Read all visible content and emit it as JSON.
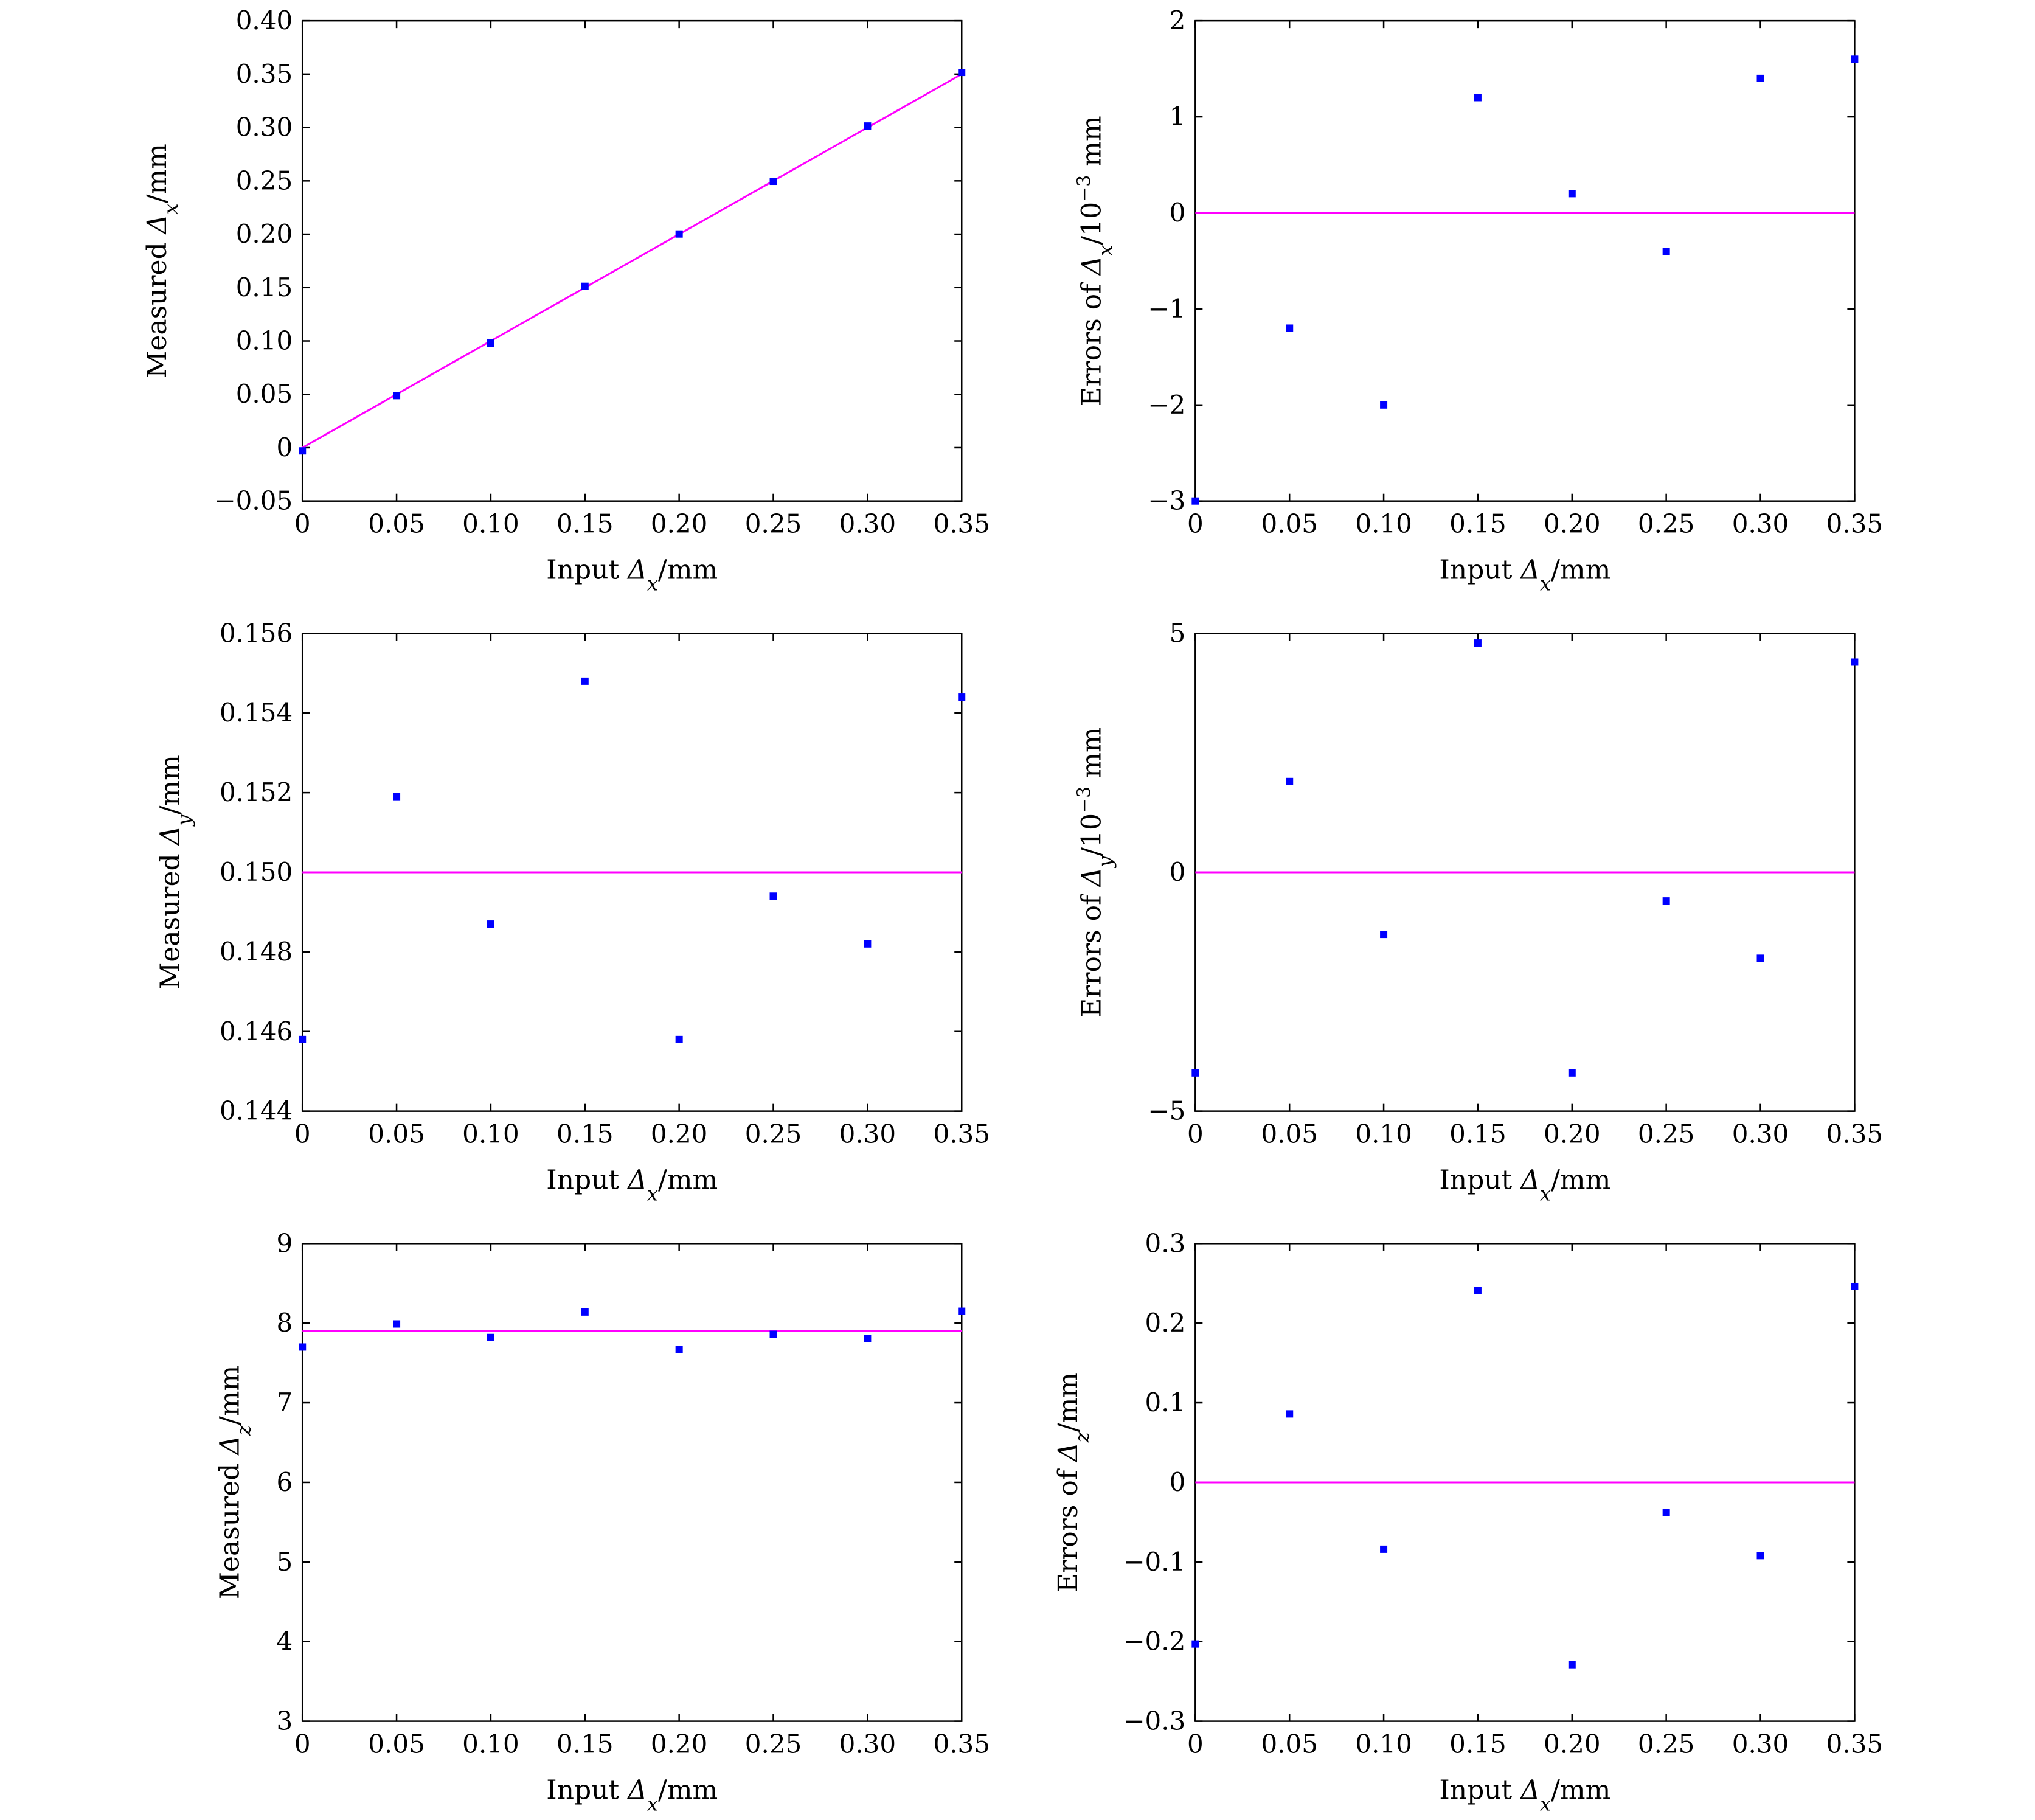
{
  "chart_data": [
    {
      "type": "scatter",
      "xlabel": "Input Δx/mm",
      "ylabel": "Measured Δx/mm",
      "xlabel_parts": {
        "pre": "Input ",
        "sym": "Δ",
        "sub": "x",
        "post": "/mm"
      },
      "ylabel_parts": {
        "pre": "Measured ",
        "sym": "Δ",
        "sub": "x",
        "post": "/mm"
      },
      "xlim": [
        0,
        0.35
      ],
      "ylim": [
        -0.05,
        0.4
      ],
      "xticks": [
        0,
        0.05,
        0.1,
        0.15,
        0.2,
        0.25,
        0.3,
        0.35
      ],
      "xtick_labels": [
        "0",
        "0.05",
        "0.10",
        "0.15",
        "0.20",
        "0.25",
        "0.30",
        "0.35"
      ],
      "yticks": [
        -0.05,
        0,
        0.05,
        0.1,
        0.15,
        0.2,
        0.25,
        0.3,
        0.35,
        0.4
      ],
      "ytick_labels": [
        "−0.05",
        "0",
        "0.05",
        "0.10",
        "0.15",
        "0.20",
        "0.25",
        "0.30",
        "0.35",
        "0.40"
      ],
      "series": [
        {
          "name": "measured",
          "color": "#0000ff",
          "x": [
            0,
            0.05,
            0.1,
            0.15,
            0.2,
            0.25,
            0.3,
            0.35
          ],
          "y": [
            -0.003,
            0.0488,
            0.098,
            0.1512,
            0.2002,
            0.2496,
            0.3014,
            0.3516
          ]
        }
      ],
      "reference_line": {
        "color": "#ff00ff",
        "x": [
          0,
          0.35
        ],
        "y": [
          0,
          0.35
        ]
      }
    },
    {
      "type": "scatter",
      "xlabel": "Input Δx/mm",
      "ylabel": "Errors of Δx/10−3 mm",
      "xlabel_parts": {
        "pre": "Input ",
        "sym": "Δ",
        "sub": "x",
        "post": "/mm"
      },
      "ylabel_parts": {
        "pre": "Errors of ",
        "sym": "Δ",
        "sub": "x",
        "post": "/10",
        "sup": "−3",
        "post2": " mm"
      },
      "xlim": [
        0,
        0.35
      ],
      "ylim": [
        -3,
        2
      ],
      "xticks": [
        0,
        0.05,
        0.1,
        0.15,
        0.2,
        0.25,
        0.3,
        0.35
      ],
      "xtick_labels": [
        "0",
        "0.05",
        "0.10",
        "0.15",
        "0.20",
        "0.25",
        "0.30",
        "0.35"
      ],
      "yticks": [
        -3,
        -2,
        -1,
        0,
        1,
        2
      ],
      "ytick_labels": [
        "−3",
        "−2",
        "−1",
        "0",
        "1",
        "2"
      ],
      "series": [
        {
          "name": "errors",
          "color": "#0000ff",
          "x": [
            0,
            0.05,
            0.1,
            0.15,
            0.2,
            0.25,
            0.3,
            0.35
          ],
          "y": [
            -3,
            -1.2,
            -2,
            1.2,
            0.2,
            -0.4,
            1.4,
            1.6
          ]
        }
      ],
      "reference_line": {
        "color": "#ff00ff",
        "x": [
          0,
          0.35
        ],
        "y": [
          0,
          0
        ]
      }
    },
    {
      "type": "scatter",
      "xlabel": "Input Δx/mm",
      "ylabel": "Measured Δy/mm",
      "xlabel_parts": {
        "pre": "Input ",
        "sym": "Δ",
        "sub": "x",
        "post": "/mm"
      },
      "ylabel_parts": {
        "pre": "Measured ",
        "sym": "Δ",
        "sub": "y",
        "post": "/mm"
      },
      "xlim": [
        0,
        0.35
      ],
      "ylim": [
        0.144,
        0.156
      ],
      "xticks": [
        0,
        0.05,
        0.1,
        0.15,
        0.2,
        0.25,
        0.3,
        0.35
      ],
      "xtick_labels": [
        "0",
        "0.05",
        "0.10",
        "0.15",
        "0.20",
        "0.25",
        "0.30",
        "0.35"
      ],
      "yticks": [
        0.144,
        0.146,
        0.148,
        0.15,
        0.152,
        0.154,
        0.156
      ],
      "ytick_labels": [
        "0.144",
        "0.146",
        "0.148",
        "0.150",
        "0.152",
        "0.154",
        "0.156"
      ],
      "series": [
        {
          "name": "measured",
          "color": "#0000ff",
          "x": [
            0,
            0.05,
            0.1,
            0.15,
            0.2,
            0.25,
            0.3,
            0.35
          ],
          "y": [
            0.1458,
            0.1519,
            0.1487,
            0.1548,
            0.1458,
            0.1494,
            0.1482,
            0.1544
          ]
        }
      ],
      "reference_line": {
        "color": "#ff00ff",
        "x": [
          0,
          0.35
        ],
        "y": [
          0.15,
          0.15
        ]
      }
    },
    {
      "type": "scatter",
      "xlabel": "Input Δx/mm",
      "ylabel": "Errors of Δy/10−3 mm",
      "xlabel_parts": {
        "pre": "Input ",
        "sym": "Δ",
        "sub": "x",
        "post": "/mm"
      },
      "ylabel_parts": {
        "pre": "Errors of ",
        "sym": "Δ",
        "sub": "y",
        "post": "/10",
        "sup": "−3",
        "post2": " mm"
      },
      "xlim": [
        0,
        0.35
      ],
      "ylim": [
        -5,
        5
      ],
      "xticks": [
        0,
        0.05,
        0.1,
        0.15,
        0.2,
        0.25,
        0.3,
        0.35
      ],
      "xtick_labels": [
        "0",
        "0.05",
        "0.10",
        "0.15",
        "0.20",
        "0.25",
        "0.30",
        "0.35"
      ],
      "yticks": [
        -5,
        0,
        5
      ],
      "ytick_labels": [
        "−5",
        "0",
        "5"
      ],
      "series": [
        {
          "name": "errors",
          "color": "#0000ff",
          "x": [
            0,
            0.05,
            0.1,
            0.15,
            0.2,
            0.25,
            0.3,
            0.35
          ],
          "y": [
            -4.2,
            1.9,
            -1.3,
            4.8,
            -4.2,
            -0.6,
            -1.8,
            4.4
          ]
        }
      ],
      "reference_line": {
        "color": "#ff00ff",
        "x": [
          0,
          0.35
        ],
        "y": [
          0,
          0
        ]
      }
    },
    {
      "type": "scatter",
      "xlabel": "Input Δx/mm",
      "ylabel": "Measured Δz/mm",
      "xlabel_parts": {
        "pre": "Input ",
        "sym": "Δ",
        "sub": "x",
        "post": "/mm"
      },
      "ylabel_parts": {
        "pre": "Measured ",
        "sym": "Δ",
        "sub": "z",
        "post": "/mm"
      },
      "xlim": [
        0,
        0.35
      ],
      "ylim": [
        3,
        9
      ],
      "xticks": [
        0,
        0.05,
        0.1,
        0.15,
        0.2,
        0.25,
        0.3,
        0.35
      ],
      "xtick_labels": [
        "0",
        "0.05",
        "0.10",
        "0.15",
        "0.20",
        "0.25",
        "0.30",
        "0.35"
      ],
      "yticks": [
        3,
        4,
        5,
        6,
        7,
        8,
        9
      ],
      "ytick_labels": [
        "3",
        "4",
        "5",
        "6",
        "7",
        "8",
        "9"
      ],
      "series": [
        {
          "name": "measured",
          "color": "#0000ff",
          "x": [
            0,
            0.05,
            0.1,
            0.15,
            0.2,
            0.25,
            0.3,
            0.35
          ],
          "y": [
            7.7,
            7.99,
            7.82,
            8.14,
            7.67,
            7.86,
            7.81,
            8.15
          ]
        }
      ],
      "reference_line": {
        "color": "#ff00ff",
        "x": [
          0,
          0.35
        ],
        "y": [
          7.9,
          7.9
        ]
      }
    },
    {
      "type": "scatter",
      "xlabel": "Input Δx/mm",
      "ylabel": "Errors of Δz/mm",
      "xlabel_parts": {
        "pre": "Input ",
        "sym": "Δ",
        "sub": "x",
        "post": "/mm"
      },
      "ylabel_parts": {
        "pre": "Errors of ",
        "sym": "Δ",
        "sub": "z",
        "post": "/mm"
      },
      "xlim": [
        0,
        0.35
      ],
      "ylim": [
        -0.3,
        0.3
      ],
      "xticks": [
        0,
        0.05,
        0.1,
        0.15,
        0.2,
        0.25,
        0.3,
        0.35
      ],
      "xtick_labels": [
        "0",
        "0.05",
        "0.10",
        "0.15",
        "0.20",
        "0.25",
        "0.30",
        "0.35"
      ],
      "yticks": [
        -0.3,
        -0.2,
        -0.1,
        0,
        0.1,
        0.2,
        0.3
      ],
      "ytick_labels": [
        "−0.3",
        "−0.2",
        "−0.1",
        "0",
        "0.1",
        "0.2",
        "0.3"
      ],
      "series": [
        {
          "name": "errors",
          "color": "#0000ff",
          "x": [
            0,
            0.05,
            0.1,
            0.15,
            0.2,
            0.25,
            0.3,
            0.35
          ],
          "y": [
            -0.203,
            0.086,
            -0.084,
            0.241,
            -0.229,
            -0.038,
            -0.092,
            0.246
          ]
        }
      ],
      "reference_line": {
        "color": "#ff00ff",
        "x": [
          0,
          0.35
        ],
        "y": [
          0,
          0
        ]
      }
    }
  ]
}
